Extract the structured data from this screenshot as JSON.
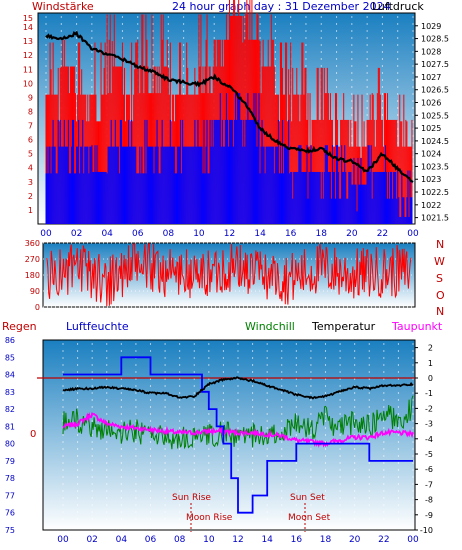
{
  "colors": {
    "wind": "#ff0000",
    "wind_gust": "#ff0000",
    "wind_avg": "#0000ff",
    "pressure": "#000000",
    "direction": "#ff0000",
    "humidity": "#0000ff",
    "windchill": "#008000",
    "temperature": "#000000",
    "dewpoint": "#ff00ff",
    "rain": "#c00000",
    "sky_top": "#1a7fc0",
    "sky_bottom": "#ffffff",
    "label_blue": "#0000c8",
    "label_red": "#c00000"
  },
  "header": {
    "left": "Windstärke",
    "center": "24 hour graph day : 31 Dezember 2024",
    "right": "Luftdruck"
  },
  "legend": {
    "rain": "Regen",
    "humidity": "Luftfeuchte",
    "windchill": "Windchill",
    "temperature": "Temperatur",
    "dewpoint": "Taupunkt"
  },
  "direction_labels": [
    "N",
    "W",
    "S",
    "O",
    "N"
  ],
  "events": {
    "sunrise": "Sun Rise",
    "moonrise": "Moon Rise",
    "sunset": "Sun Set",
    "moonset": "Moon Set"
  },
  "chart_data": [
    {
      "type": "line",
      "name": "wind-pressure",
      "x_ticks": [
        "00",
        "02",
        "04",
        "06",
        "08",
        "10",
        "12",
        "14",
        "16",
        "18",
        "20",
        "22",
        "00"
      ],
      "x_range": [
        0,
        24
      ],
      "y_left_range": [
        0,
        15
      ],
      "y_left_ticks": [
        1,
        2,
        3,
        4,
        5,
        6,
        7,
        8,
        9,
        10,
        11,
        12,
        13,
        14
      ],
      "y_right_range": [
        1021.25,
        1029.5
      ],
      "y_right_ticks": [
        "1021.5",
        "1022",
        "1022.5",
        "1023",
        "1023.5",
        "1024",
        "1024.5",
        "1025",
        "1025.5",
        "1026",
        "1026.5",
        "1027",
        "1027.5",
        "1028",
        "1028.5",
        "1029"
      ],
      "series": [
        {
          "key": "wind_gust",
          "hours": [
            0,
            1,
            2,
            3,
            4,
            5,
            6,
            7,
            8,
            9,
            10,
            11,
            12,
            13,
            14,
            15,
            16,
            17,
            18,
            19,
            20,
            21,
            22,
            23,
            24
          ],
          "values": [
            9.2,
            11.2,
            9.2,
            9.2,
            11.2,
            9.2,
            11.2,
            11.2,
            9.2,
            9.2,
            11.2,
            13.1,
            14.8,
            13.1,
            11.2,
            9.2,
            9.2,
            7.4,
            7.4,
            7.4,
            5.5,
            7.4,
            7.4,
            5.5,
            7.4
          ]
        },
        {
          "key": "wind_avg",
          "hours": [
            0,
            1,
            2,
            3,
            4,
            5,
            6,
            7,
            8,
            9,
            10,
            11,
            12,
            13,
            14,
            15,
            16,
            17,
            18,
            19,
            20,
            21,
            22,
            23,
            24
          ],
          "values": [
            5.5,
            5.5,
            5.5,
            3.7,
            5.5,
            5.5,
            5.5,
            5.5,
            5.5,
            5.5,
            5.5,
            7.4,
            7.4,
            7.4,
            5.5,
            5.5,
            3.7,
            3.7,
            3.7,
            3.7,
            2.8,
            3.7,
            3.7,
            1.9,
            3.7
          ]
        },
        {
          "key": "pressure",
          "hours": [
            0,
            1,
            2,
            3,
            4,
            5,
            6,
            7,
            8,
            9,
            10,
            11,
            12,
            13,
            14,
            15,
            16,
            17,
            18,
            19,
            20,
            21,
            22,
            23,
            24
          ],
          "values": [
            1028.6,
            1028.5,
            1028.7,
            1028.1,
            1027.9,
            1027.7,
            1027.4,
            1027.2,
            1026.9,
            1026.8,
            1026.7,
            1027.0,
            1026.6,
            1026.0,
            1025.0,
            1024.5,
            1024.2,
            1024.1,
            1024.2,
            1023.8,
            1023.7,
            1023.3,
            1024.0,
            1023.4,
            1022.9
          ]
        }
      ]
    },
    {
      "type": "line",
      "name": "wind-direction",
      "x_range": [
        0,
        24
      ],
      "y_range": [
        0,
        360
      ],
      "y_ticks": [
        0,
        90,
        180,
        270,
        360
      ],
      "series": [
        {
          "key": "direction",
          "hours": [
            0,
            2,
            4,
            6,
            8,
            10,
            12,
            14,
            16,
            18,
            20,
            22,
            24
          ],
          "values": [
            180,
            210,
            150,
            240,
            200,
            170,
            230,
            190,
            160,
            220,
            180,
            200,
            200
          ]
        }
      ]
    },
    {
      "type": "line",
      "name": "temperature-humidity",
      "x_ticks": [
        "00",
        "02",
        "04",
        "06",
        "08",
        "10",
        "12",
        "14",
        "16",
        "18",
        "20",
        "22",
        "00"
      ],
      "x_range": [
        0,
        24
      ],
      "y_left_range": [
        75,
        86
      ],
      "y_left_ticks": [
        75,
        76,
        77,
        78,
        79,
        80,
        81,
        82,
        83,
        84,
        85,
        86
      ],
      "y_right_range": [
        -10,
        2.5
      ],
      "y_right_ticks": [
        2,
        1,
        0,
        -1,
        -2,
        -3,
        -4,
        -5,
        -6,
        -7,
        -8,
        -9,
        -10
      ],
      "rain_value": 0,
      "series": [
        {
          "key": "humidity",
          "hours": [
            0,
            2.7,
            3.3,
            4,
            6,
            8,
            9,
            9.5,
            10,
            10.5,
            11,
            11.5,
            12,
            12.5,
            13,
            13.5,
            14,
            15,
            16,
            17,
            18,
            19,
            20,
            21,
            22,
            23,
            24
          ],
          "values": [
            84,
            84,
            84,
            85,
            84,
            84,
            84,
            83,
            82,
            81,
            80,
            78,
            76,
            76,
            77,
            77,
            79,
            79,
            80,
            80,
            80,
            80,
            80,
            79,
            79,
            79,
            79
          ]
        },
        {
          "key": "temperature",
          "hours": [
            0,
            1,
            2,
            3,
            4,
            5,
            6,
            7,
            8,
            9,
            10,
            11,
            12,
            13,
            14,
            15,
            16,
            17,
            18,
            19,
            20,
            21,
            22,
            23,
            24
          ],
          "values": [
            -0.8,
            -0.7,
            -0.7,
            -0.6,
            -0.7,
            -0.8,
            -1.0,
            -1.0,
            -1.3,
            -1.2,
            -0.4,
            -0.1,
            0.0,
            -0.2,
            -0.5,
            -0.8,
            -1.1,
            -1.3,
            -1.2,
            -0.9,
            -0.6,
            -0.7,
            -0.5,
            -0.5,
            -0.4
          ]
        },
        {
          "key": "windchill",
          "hours": [
            0,
            1,
            2,
            3,
            4,
            5,
            6,
            7,
            8,
            9,
            10,
            11,
            12,
            13,
            14,
            15,
            16,
            17,
            18,
            19,
            20,
            21,
            22,
            23,
            24
          ],
          "values": [
            -3.0,
            -2.8,
            -3.2,
            -3.4,
            -3.6,
            -3.5,
            -3.7,
            -3.9,
            -4.0,
            -4.0,
            -3.8,
            -3.6,
            -3.9,
            -3.8,
            -3.9,
            -3.5,
            -3.0,
            -3.5,
            -2.6,
            -3.4,
            -2.8,
            -3.2,
            -2.2,
            -2.9,
            -1.9
          ]
        },
        {
          "key": "dewpoint",
          "hours": [
            0,
            1,
            2,
            3,
            4,
            5,
            6,
            7,
            8,
            9,
            10,
            11,
            12,
            13,
            14,
            15,
            16,
            17,
            18,
            19,
            20,
            21,
            22,
            23,
            24
          ],
          "values": [
            -3.2,
            -3.0,
            -2.4,
            -3.0,
            -3.2,
            -3.3,
            -3.4,
            -3.5,
            -3.6,
            -3.6,
            -3.5,
            -3.5,
            -3.6,
            -3.6,
            -3.7,
            -3.8,
            -4.1,
            -4.2,
            -4.3,
            -4.1,
            -3.9,
            -3.9,
            -3.6,
            -3.6,
            -3.7
          ]
        }
      ]
    }
  ]
}
